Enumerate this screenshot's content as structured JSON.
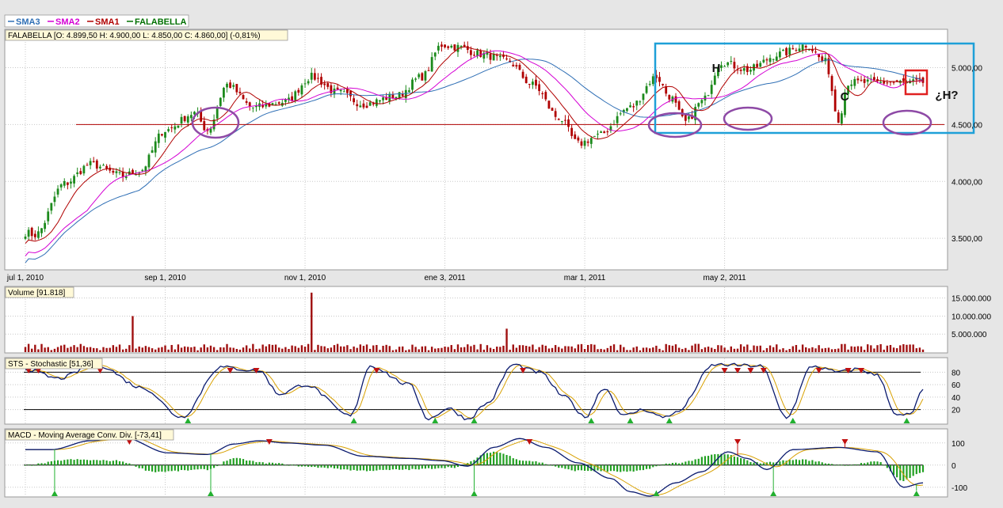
{
  "legend": [
    {
      "name": "SMA3",
      "color": "#2f6fb5"
    },
    {
      "name": "SMA2",
      "color": "#d400d4"
    },
    {
      "name": "SMA1",
      "color": "#b00000"
    },
    {
      "name": "FALABELLA",
      "color": "#007000"
    }
  ],
  "price_panel": {
    "label": "FALABELLA [O: 4.899,50  H: 4.900,00  L: 4.850,00  C: 4.860,00] (-0,81%)",
    "y_ticks": [
      {
        "value": 3500,
        "label": "3.500,00"
      },
      {
        "value": 4000,
        "label": "4.000,00"
      },
      {
        "value": 4500,
        "label": "4.500,00"
      },
      {
        "value": 5000,
        "label": "5.000,00"
      }
    ],
    "ylim": [
      3230,
      5330
    ],
    "x_ticks": [
      {
        "index": 0,
        "label": "jul 1, 2010"
      },
      {
        "index": 43,
        "label": "sep 1, 2010"
      },
      {
        "index": 86,
        "label": "nov 1, 2010"
      },
      {
        "index": 129,
        "label": "ene 3, 2011"
      },
      {
        "index": 172,
        "label": "mar 1, 2011"
      },
      {
        "index": 215,
        "label": "may 2, 2011"
      }
    ],
    "support_level": 4500,
    "annotations": [
      {
        "text": "H",
        "index": 194,
        "value": 5050
      },
      {
        "text": "C",
        "index": 225,
        "value": 4770
      },
      {
        "text": "¿H?",
        "index": 252,
        "value": 4780
      }
    ]
  },
  "volume_panel": {
    "label": "Volume [91.818]",
    "y_ticks": [
      {
        "value": 5000000,
        "label": "5.000.000"
      },
      {
        "value": 10000000,
        "label": "10.000.000"
      },
      {
        "value": 15000000,
        "label": "15.000.000"
      }
    ],
    "ymax": 18000000
  },
  "stochastic_panel": {
    "label": "STS - Stochastic [51,36]",
    "y_ticks": [
      {
        "value": 20,
        "label": "20"
      },
      {
        "value": 40,
        "label": "40"
      },
      {
        "value": 60,
        "label": "60"
      },
      {
        "value": 80,
        "label": "80"
      }
    ],
    "levels": [
      20,
      80
    ]
  },
  "macd_panel": {
    "label": "MACD - Moving Average Conv. Div. [-73,41]",
    "y_ticks": [
      {
        "value": -100,
        "label": "-100"
      },
      {
        "value": 0,
        "label": "0"
      },
      {
        "value": 100,
        "label": "100"
      }
    ],
    "ylim": [
      -140,
      160
    ]
  },
  "chart_data": {
    "type": "line",
    "title": "FALABELLA",
    "note": "daily OHLC candlesticks with SMA overlays, volume, stochastic and MACD sub-panels",
    "key_points": [
      {
        "index": 0,
        "close": 3550
      },
      {
        "index": 3,
        "close": 3530
      },
      {
        "index": 12,
        "close": 3980
      },
      {
        "index": 20,
        "close": 4150
      },
      {
        "index": 30,
        "close": 4050
      },
      {
        "index": 35,
        "close": 4090
      },
      {
        "index": 43,
        "close": 4450
      },
      {
        "index": 52,
        "close": 4600
      },
      {
        "index": 56,
        "close": 4450
      },
      {
        "index": 62,
        "close": 4850
      },
      {
        "index": 70,
        "close": 4650
      },
      {
        "index": 80,
        "close": 4700
      },
      {
        "index": 88,
        "close": 4920
      },
      {
        "index": 96,
        "close": 4780
      },
      {
        "index": 104,
        "close": 4680
      },
      {
        "index": 114,
        "close": 4750
      },
      {
        "index": 122,
        "close": 4920
      },
      {
        "index": 128,
        "close": 5200
      },
      {
        "index": 133,
        "close": 5180
      },
      {
        "index": 140,
        "close": 5120
      },
      {
        "index": 148,
        "close": 5060
      },
      {
        "index": 156,
        "close": 4850
      },
      {
        "index": 164,
        "close": 4560
      },
      {
        "index": 170,
        "close": 4330
      },
      {
        "index": 176,
        "close": 4400
      },
      {
        "index": 186,
        "close": 4650
      },
      {
        "index": 194,
        "close": 4920
      },
      {
        "index": 198,
        "close": 4750
      },
      {
        "index": 203,
        "close": 4520
      },
      {
        "index": 208,
        "close": 4700
      },
      {
        "index": 214,
        "close": 5050
      },
      {
        "index": 222,
        "close": 4980
      },
      {
        "index": 232,
        "close": 5120
      },
      {
        "index": 240,
        "close": 5200
      },
      {
        "index": 246,
        "close": 5050
      },
      {
        "index": 250,
        "close": 4550
      },
      {
        "index": 253,
        "close": 4870
      }
    ],
    "volume_spikes": [
      {
        "index": 33,
        "value": 10000000
      },
      {
        "index": 88,
        "value": 16500000
      },
      {
        "index": 148,
        "value": 6500000
      }
    ],
    "stochastic_key": [
      {
        "index": 0,
        "value": 85
      },
      {
        "index": 10,
        "value": 70
      },
      {
        "index": 22,
        "value": 92
      },
      {
        "index": 36,
        "value": 55
      },
      {
        "index": 48,
        "value": 8
      },
      {
        "index": 60,
        "value": 88
      },
      {
        "index": 72,
        "value": 82
      },
      {
        "index": 78,
        "value": 45
      },
      {
        "index": 86,
        "value": 60
      },
      {
        "index": 100,
        "value": 10
      },
      {
        "index": 106,
        "value": 90
      },
      {
        "index": 118,
        "value": 60
      },
      {
        "index": 124,
        "value": 5
      },
      {
        "index": 130,
        "value": 22
      },
      {
        "index": 136,
        "value": 5
      },
      {
        "index": 142,
        "value": 30
      },
      {
        "index": 150,
        "value": 92
      },
      {
        "index": 158,
        "value": 80
      },
      {
        "index": 166,
        "value": 40
      },
      {
        "index": 172,
        "value": 8
      },
      {
        "index": 178,
        "value": 55
      },
      {
        "index": 184,
        "value": 10
      },
      {
        "index": 190,
        "value": 20
      },
      {
        "index": 196,
        "value": 8
      },
      {
        "index": 200,
        "value": 15
      },
      {
        "index": 212,
        "value": 92
      },
      {
        "index": 226,
        "value": 90
      },
      {
        "index": 234,
        "value": 8
      },
      {
        "index": 242,
        "value": 90
      },
      {
        "index": 250,
        "value": 80
      },
      {
        "index": 256,
        "value": 85
      },
      {
        "index": 262,
        "value": 75
      },
      {
        "index": 268,
        "value": 10
      },
      {
        "index": 272,
        "value": 12
      },
      {
        "index": 276,
        "value": 50
      }
    ],
    "macd_key": [
      {
        "index": 0,
        "value": 70
      },
      {
        "index": 8,
        "value": 70
      },
      {
        "index": 20,
        "value": 110
      },
      {
        "index": 30,
        "value": 125
      },
      {
        "index": 44,
        "value": 55
      },
      {
        "index": 56,
        "value": 48
      },
      {
        "index": 64,
        "value": 95
      },
      {
        "index": 72,
        "value": 110
      },
      {
        "index": 80,
        "value": 100
      },
      {
        "index": 92,
        "value": 90
      },
      {
        "index": 104,
        "value": 40
      },
      {
        "index": 118,
        "value": 30
      },
      {
        "index": 128,
        "value": 20
      },
      {
        "index": 136,
        "value": -5
      },
      {
        "index": 144,
        "value": 80
      },
      {
        "index": 152,
        "value": 120
      },
      {
        "index": 160,
        "value": 80
      },
      {
        "index": 170,
        "value": 10
      },
      {
        "index": 180,
        "value": -60
      },
      {
        "index": 186,
        "value": -120
      },
      {
        "index": 192,
        "value": -140
      },
      {
        "index": 200,
        "value": -80
      },
      {
        "index": 208,
        "value": -30
      },
      {
        "index": 216,
        "value": 60
      },
      {
        "index": 222,
        "value": 30
      },
      {
        "index": 228,
        "value": -20
      },
      {
        "index": 236,
        "value": 70
      },
      {
        "index": 250,
        "value": 80
      },
      {
        "index": 262,
        "value": 60
      },
      {
        "index": 270,
        "value": -100
      },
      {
        "index": 276,
        "value": -80
      }
    ],
    "macd_hist_key": [
      {
        "index": 0,
        "value": 0
      },
      {
        "index": 14,
        "value": 25
      },
      {
        "index": 28,
        "value": 20
      },
      {
        "index": 40,
        "value": -30
      },
      {
        "index": 56,
        "value": -20
      },
      {
        "index": 64,
        "value": 30
      },
      {
        "index": 74,
        "value": 10
      },
      {
        "index": 90,
        "value": -10
      },
      {
        "index": 104,
        "value": -25
      },
      {
        "index": 118,
        "value": -20
      },
      {
        "index": 132,
        "value": -10
      },
      {
        "index": 144,
        "value": 60
      },
      {
        "index": 154,
        "value": 20
      },
      {
        "index": 170,
        "value": -25
      },
      {
        "index": 186,
        "value": -30
      },
      {
        "index": 200,
        "value": 10
      },
      {
        "index": 214,
        "value": 50
      },
      {
        "index": 226,
        "value": 10
      },
      {
        "index": 238,
        "value": 25
      },
      {
        "index": 252,
        "value": 0
      },
      {
        "index": 262,
        "value": 15
      },
      {
        "index": 270,
        "value": -70
      },
      {
        "index": 276,
        "value": -30
      }
    ]
  }
}
